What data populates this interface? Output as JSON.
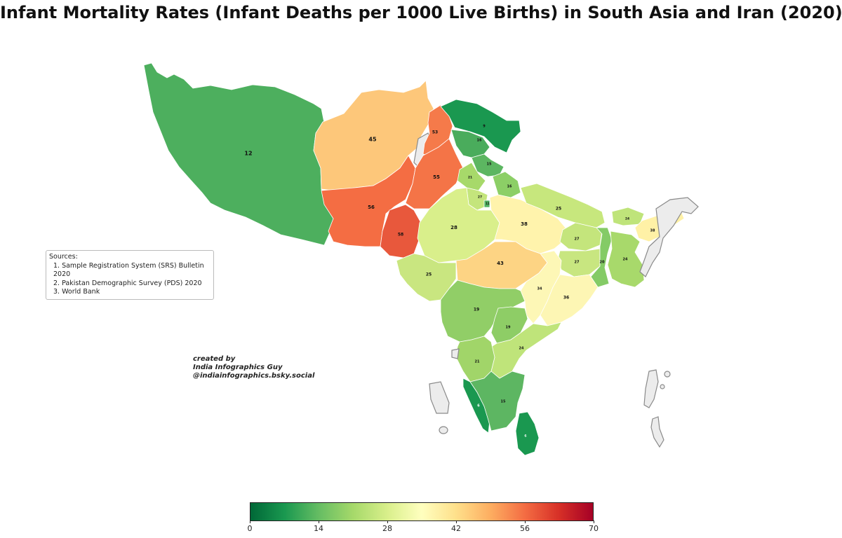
{
  "title": "Infant Mortality Rates (Infant Deaths per 1000 Live Births) in South Asia and Iran (2020)",
  "sources": {
    "heading": "Sources:",
    "items": [
      "1. Sample Registration System (SRS) Bulletin 2020",
      "2. Pakistan Demographic Survey (PDS) 2020",
      "3. World Bank"
    ]
  },
  "credit": {
    "line1": "created by",
    "line2": "India Infographics Guy",
    "line3": "@indiainfographics.bsky.social"
  },
  "colorbar": {
    "min": 0,
    "max": 70,
    "ticks": [
      "0",
      "14",
      "28",
      "42",
      "56",
      "70"
    ],
    "colormap": [
      "#006837",
      "#1a9850",
      "#66bd63",
      "#a6d96a",
      "#d9ef8b",
      "#ffffbf",
      "#fee08b",
      "#fdae61",
      "#f46d43",
      "#d73027",
      "#a50026"
    ]
  },
  "map_values": {
    "iran": "12",
    "afghanistan": "45",
    "balochistan": "56",
    "sindh": "58",
    "punjab_pakistan": "55",
    "khyber_pakhtunkhwa": "53",
    "ladakh": "9",
    "jammu_kashmir": "16",
    "himachal_pradesh": "15",
    "punjab_india": "21",
    "haryana": "27",
    "delhi": "11",
    "uttarakhand": "16",
    "rajasthan": "28",
    "uttar_pradesh": "38",
    "nepal": "25",
    "bihar": "27",
    "bhutan": "24",
    "assam": "38",
    "bangladesh": "24",
    "jharkhand": "27",
    "west_bengal": "20",
    "gujarat": "25",
    "madhya_pradesh": "43",
    "chhattisgarh": "34",
    "odisha": "36",
    "maharashtra": "19",
    "telangana": "19",
    "andhra_pradesh": "24",
    "karnataka": "21",
    "kerala": "6",
    "tamil_nadu": "15",
    "sri_lanka": "6"
  }
}
